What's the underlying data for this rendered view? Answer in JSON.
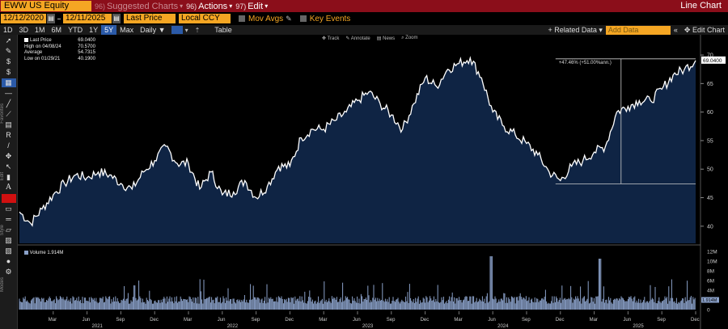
{
  "titlebar": {
    "ticker": "EWW US Equity",
    "suggested_num": "96)",
    "suggested": "Suggested Charts",
    "actions_num": "96)",
    "actions": "Actions",
    "edit_num": "97)",
    "edit": "Edit",
    "chart_type": "Line Chart"
  },
  "range": {
    "start": "12/12/2020",
    "end": "12/11/2025",
    "field": "Last Price",
    "currency": "Local CCY",
    "mov_avgs": "Mov Avgs",
    "key_events": "Key Events"
  },
  "periods": [
    "1D",
    "3D",
    "1M",
    "6M",
    "YTD",
    "1Y",
    "5Y",
    "Max"
  ],
  "active_period": "5Y",
  "frequency": "Daily",
  "table_label": "Table",
  "related_data": "+ Related Data",
  "add_data_placeholder": "Add Data",
  "edit_chart": "Edit Chart",
  "legend": {
    "last_price_label": "Last Price",
    "last_price": "69.0400",
    "high_label": "High on 04/08/24",
    "high": "70.5700",
    "avg_label": "Average",
    "avg": "54.7315",
    "low_label": "Low on 01/29/21",
    "low": "40.1900"
  },
  "chart_tools": [
    "Track",
    "Annotate",
    "News",
    "Zoom"
  ],
  "annotation": "+47.46% (+51.00%ann.)",
  "left_panel_labels": {
    "favorites": "Favorites",
    "edit": "Edit",
    "style": "Style",
    "modes": "Modes"
  },
  "volume_label": "Volume",
  "volume_last": "1.914M",
  "volume_last_short": "1.914M",
  "price_axis_labels": [
    "70",
    "65",
    "60",
    "55",
    "50",
    "45",
    "40"
  ],
  "last_price_tag": "69.0400",
  "volume_axis_labels": [
    "12M",
    "10M",
    "8M",
    "6M",
    "4M",
    "2M",
    "0"
  ],
  "x_month_labels": [
    "Mar",
    "Jun",
    "Sep",
    "Dec",
    "Mar",
    "Jun",
    "Sep",
    "Dec",
    "Mar",
    "Jun",
    "Sep",
    "Dec",
    "Mar",
    "Jun",
    "Sep",
    "Dec",
    "Mar",
    "Jun",
    "Sep",
    "Dec"
  ],
  "x_year_labels": [
    "2021",
    "2022",
    "2023",
    "2024",
    "2025"
  ],
  "colors": {
    "title_bar": "#8b0e1a",
    "accent_orange": "#f5a623",
    "area_fill": "#0f2444",
    "volume_fill": "#8aa0c8",
    "active_blue": "#2b5aa8"
  },
  "chart_data": {
    "type": "line",
    "title": "",
    "xlabel": "",
    "ylabel": "",
    "ylim": [
      37,
      71
    ],
    "x": [
      "2020-12",
      "2021-01",
      "2021-02",
      "2021-03",
      "2021-04",
      "2021-05",
      "2021-06",
      "2021-07",
      "2021-08",
      "2021-09",
      "2021-10",
      "2021-11",
      "2021-12",
      "2022-01",
      "2022-02",
      "2022-03",
      "2022-04",
      "2022-05",
      "2022-06",
      "2022-07",
      "2022-08",
      "2022-09",
      "2022-10",
      "2022-11",
      "2022-12",
      "2023-01",
      "2023-02",
      "2023-03",
      "2023-04",
      "2023-05",
      "2023-06",
      "2023-07",
      "2023-08",
      "2023-09",
      "2023-10",
      "2023-11",
      "2023-12",
      "2024-01",
      "2024-02",
      "2024-03",
      "2024-04",
      "2024-05",
      "2024-06",
      "2024-07",
      "2024-08",
      "2024-09",
      "2024-10",
      "2024-11",
      "2024-12",
      "2025-01",
      "2025-02",
      "2025-03",
      "2025-04",
      "2025-05",
      "2025-06",
      "2025-07",
      "2025-08",
      "2025-09",
      "2025-10",
      "2025-11",
      "2025-12"
    ],
    "series": [
      {
        "values": [
          42.5,
          40.5,
          43.0,
          45.5,
          47.5,
          49.0,
          48.5,
          49.5,
          49.0,
          47.5,
          46.5,
          49.5,
          51.5,
          54.0,
          51.0,
          51.0,
          46.5,
          49.5,
          45.5,
          46.0,
          48.0,
          45.0,
          47.0,
          50.5,
          50.5,
          55.5,
          57.0,
          57.0,
          58.5,
          60.0,
          62.0,
          63.5,
          61.5,
          59.5,
          57.0,
          61.5,
          66.0,
          64.5,
          67.5,
          68.5,
          69.5,
          66.0,
          60.0,
          57.5,
          56.0,
          54.5,
          52.5,
          49.5,
          48.0,
          50.5,
          51.5,
          53.0,
          54.0,
          60.0,
          61.0,
          62.0,
          62.0,
          64.0,
          66.5,
          67.5,
          69.04
        ]
      }
    ],
    "volume": {
      "label": "Volume",
      "unit": "M",
      "ylim": [
        0,
        12
      ],
      "last": 1.914
    }
  }
}
